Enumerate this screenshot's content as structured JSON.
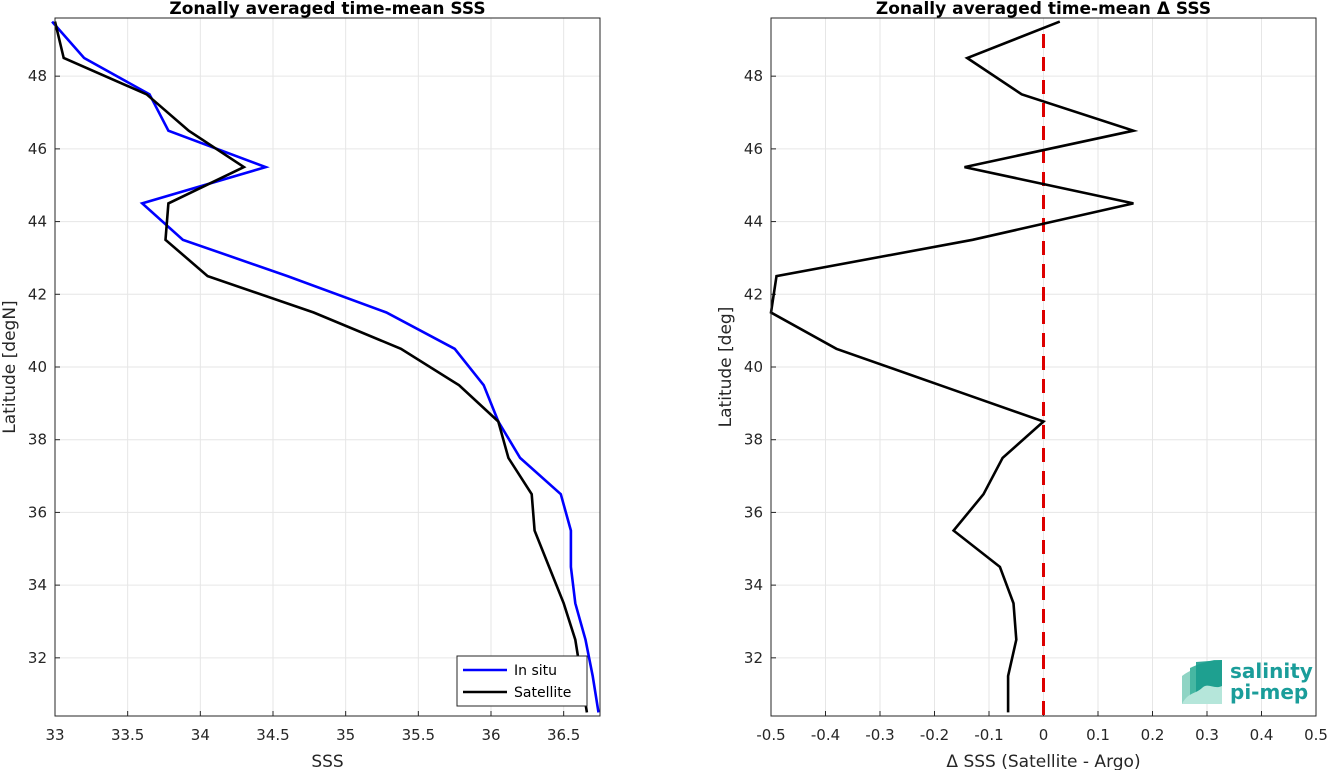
{
  "colors": {
    "insitu": "#0000ff",
    "satellite": "#000000",
    "zero_line": "#dd0000",
    "logo": "#1a9d9a"
  },
  "logo": {
    "line1": "salinity",
    "line2": "pi-mep"
  },
  "chart_data": [
    {
      "type": "line",
      "title": "Zonally averaged time-mean SSS",
      "xlabel": "SSS",
      "ylabel": "Latitude [degN]",
      "xlim": [
        33,
        36.75
      ],
      "ylim": [
        30.4,
        49.6
      ],
      "xticks": [
        33,
        33.5,
        34,
        34.5,
        35,
        35.5,
        36,
        36.5
      ],
      "xtick_labels": [
        "33",
        "33.5",
        "34",
        "34.5",
        "35",
        "35.5",
        "36",
        "36.5"
      ],
      "yticks": [
        32,
        34,
        36,
        38,
        40,
        42,
        44,
        46,
        48
      ],
      "ytick_labels": [
        "32",
        "34",
        "36",
        "38",
        "40",
        "42",
        "44",
        "46",
        "48"
      ],
      "grid": true,
      "legend": {
        "placement": "bottom-right",
        "entries": [
          "In situ",
          "Satellite"
        ]
      },
      "series": [
        {
          "name": "In situ",
          "color": "#0000ff",
          "points": [
            [
              32.98,
              49.5
            ],
            [
              33.2,
              48.5
            ],
            [
              33.65,
              47.5
            ],
            [
              33.78,
              46.5
            ],
            [
              34.45,
              45.5
            ],
            [
              33.6,
              44.5
            ],
            [
              33.88,
              43.5
            ],
            [
              34.6,
              42.5
            ],
            [
              35.28,
              41.5
            ],
            [
              35.75,
              40.5
            ],
            [
              35.95,
              39.5
            ],
            [
              36.05,
              38.5
            ],
            [
              36.2,
              37.5
            ],
            [
              36.48,
              36.5
            ],
            [
              36.55,
              35.5
            ],
            [
              36.55,
              34.5
            ],
            [
              36.58,
              33.5
            ],
            [
              36.65,
              32.5
            ],
            [
              36.7,
              31.5
            ],
            [
              36.74,
              30.5
            ]
          ]
        },
        {
          "name": "Satellite",
          "color": "#000000",
          "points": [
            [
              33.0,
              49.5
            ],
            [
              33.06,
              48.5
            ],
            [
              33.63,
              47.5
            ],
            [
              33.92,
              46.5
            ],
            [
              34.3,
              45.5
            ],
            [
              33.78,
              44.5
            ],
            [
              33.76,
              43.5
            ],
            [
              34.05,
              42.5
            ],
            [
              34.78,
              41.5
            ],
            [
              35.38,
              40.5
            ],
            [
              35.78,
              39.5
            ],
            [
              36.05,
              38.5
            ],
            [
              36.12,
              37.5
            ],
            [
              36.28,
              36.5
            ],
            [
              36.3,
              35.5
            ],
            [
              36.4,
              34.5
            ],
            [
              36.5,
              33.5
            ],
            [
              36.58,
              32.5
            ],
            [
              36.62,
              31.5
            ],
            [
              36.66,
              30.5
            ]
          ]
        }
      ]
    },
    {
      "type": "line",
      "title": "Zonally averaged time-mean Δ SSS",
      "xlabel": "Δ SSS (Satellite - Argo)",
      "ylabel": "Latitude [deg]",
      "xlim": [
        -0.5,
        0.5
      ],
      "ylim": [
        30.4,
        49.6
      ],
      "xticks": [
        -0.5,
        -0.4,
        -0.3,
        -0.2,
        -0.1,
        0,
        0.1,
        0.2,
        0.3,
        0.4,
        0.5
      ],
      "xtick_labels": [
        "-0.5",
        "-0.4",
        "-0.3",
        "-0.2",
        "-0.1",
        "0",
        "0.1",
        "0.2",
        "0.3",
        "0.4",
        "0.5"
      ],
      "yticks": [
        32,
        34,
        36,
        38,
        40,
        42,
        44,
        46,
        48
      ],
      "ytick_labels": [
        "32",
        "34",
        "36",
        "38",
        "40",
        "42",
        "44",
        "46",
        "48"
      ],
      "grid": true,
      "reference_line": {
        "x": 0,
        "color": "#dd0000",
        "style": "dashed"
      },
      "series": [
        {
          "color": "#000000",
          "points": [
            [
              0.03,
              49.5
            ],
            [
              -0.14,
              48.5
            ],
            [
              -0.04,
              47.5
            ],
            [
              0.165,
              46.5
            ],
            [
              -0.145,
              45.5
            ],
            [
              0.165,
              44.5
            ],
            [
              -0.13,
              43.5
            ],
            [
              -0.49,
              42.5
            ],
            [
              -0.5,
              41.5
            ],
            [
              -0.38,
              40.5
            ],
            [
              -0.19,
              39.5
            ],
            [
              0.0,
              38.5
            ],
            [
              -0.075,
              37.5
            ],
            [
              -0.11,
              36.5
            ],
            [
              -0.165,
              35.5
            ],
            [
              -0.08,
              34.5
            ],
            [
              -0.055,
              33.5
            ],
            [
              -0.05,
              32.5
            ],
            [
              -0.065,
              31.5
            ],
            [
              -0.065,
              30.5
            ]
          ]
        }
      ]
    }
  ]
}
